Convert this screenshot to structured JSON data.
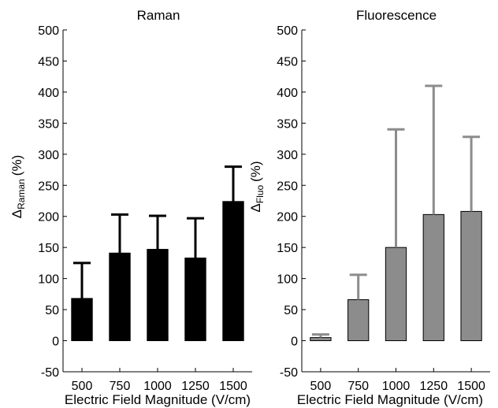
{
  "chart_data": [
    {
      "type": "bar",
      "title": "Raman",
      "ylabel_symbol": "Δ",
      "ylabel_subscript": "Raman",
      "ylabel_unit": "(%)",
      "xlabel": "Electric Field Magnitude (V/cm)",
      "categories": [
        "500",
        "750",
        "1000",
        "1250",
        "1500"
      ],
      "values": [
        68,
        141,
        147,
        133,
        224
      ],
      "error_upper": [
        125,
        203,
        201,
        197,
        280
      ],
      "ylim": [
        -50,
        500
      ],
      "yticks": [
        -50,
        0,
        50,
        100,
        150,
        200,
        250,
        300,
        350,
        400,
        450,
        500
      ],
      "bar_color": "#000000",
      "error_color": "#000000"
    },
    {
      "type": "bar",
      "title": "Fluorescence",
      "ylabel_symbol": "Δ",
      "ylabel_subscript": "Fluo",
      "ylabel_unit": "(%)",
      "xlabel": "Electric Field Magnitude (V/cm)",
      "categories": [
        "500",
        "750",
        "1000",
        "1250",
        "1500"
      ],
      "values": [
        5,
        66,
        150,
        203,
        208
      ],
      "error_upper": [
        10,
        106,
        340,
        410,
        328
      ],
      "ylim": [
        -50,
        500
      ],
      "yticks": [
        -50,
        0,
        50,
        100,
        150,
        200,
        250,
        300,
        350,
        400,
        450,
        500
      ],
      "bar_color": "#8c8c8c",
      "error_color": "#8c8c8c"
    }
  ]
}
